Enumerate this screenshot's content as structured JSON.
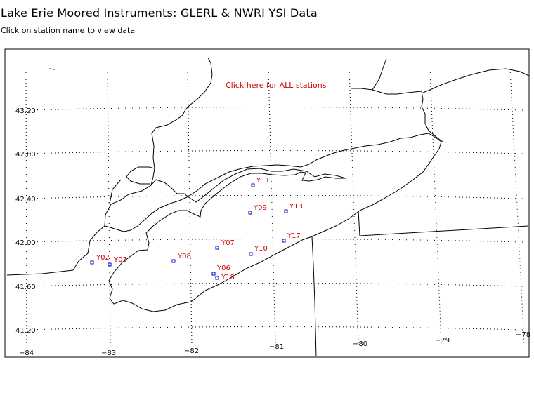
{
  "page": {
    "title": "Lake Erie Moored Instruments: GLERL & NWRI YSI Data",
    "subtitle": "Click on station name to view data",
    "all_stations_link": "Click here for ALL stations"
  },
  "axes": {
    "lon_labels": [
      "−84",
      "−83",
      "−82",
      "−81",
      "−80",
      "−79",
      "−78"
    ],
    "lat_labels": [
      "43.20",
      "42.80",
      "42.40",
      "42.00",
      "41.60",
      "41.20"
    ]
  },
  "colors": {
    "station": "#0000cc",
    "label": "#cc0000",
    "line": "#000000"
  },
  "stations": [
    {
      "id": "Y02",
      "label": "Y02"
    },
    {
      "id": "Y03",
      "label": "Y03"
    },
    {
      "id": "Y08",
      "label": "Y08"
    },
    {
      "id": "Y07",
      "label": "Y07"
    },
    {
      "id": "Y06",
      "label": "Y06"
    },
    {
      "id": "Y18",
      "label": "Y18"
    },
    {
      "id": "Y10",
      "label": "Y10"
    },
    {
      "id": "Y09",
      "label": "Y09"
    },
    {
      "id": "Y11",
      "label": "Y11"
    },
    {
      "id": "Y13",
      "label": "Y13"
    },
    {
      "id": "Y17",
      "label": "Y17"
    }
  ]
}
